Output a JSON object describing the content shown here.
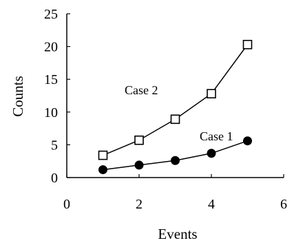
{
  "chart_data": {
    "type": "line",
    "xlabel": "Events",
    "ylabel": "Counts",
    "xlim": [
      0,
      6
    ],
    "ylim": [
      0,
      25
    ],
    "xticks": [
      0,
      2,
      4,
      6
    ],
    "yticks": [
      0,
      5,
      10,
      15,
      20,
      25
    ],
    "grid": false,
    "series": [
      {
        "name": "Case 1",
        "marker": "filled-circle",
        "color": "#000000",
        "x": [
          1,
          2,
          3,
          4,
          5
        ],
        "y": [
          1.2,
          1.9,
          2.6,
          3.7,
          5.6
        ]
      },
      {
        "name": "Case 2",
        "marker": "open-square",
        "color": "#000000",
        "x": [
          1,
          2,
          3,
          4,
          5
        ],
        "y": [
          3.4,
          5.7,
          8.9,
          12.8,
          20.3
        ]
      }
    ]
  }
}
